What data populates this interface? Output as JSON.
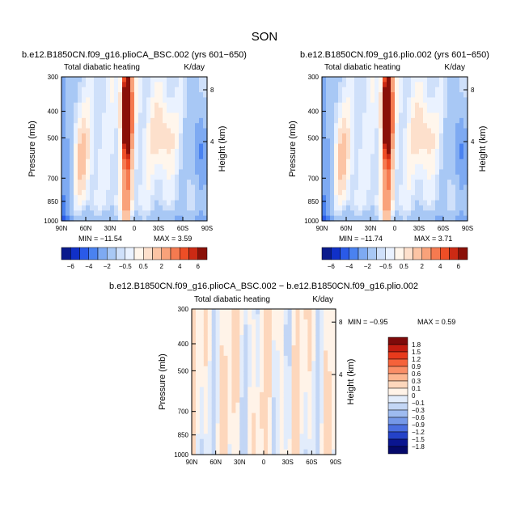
{
  "figure": {
    "title": "SON"
  },
  "chart_data": [
    {
      "type": "heatmap",
      "title": "b.e12.B1850CN.f09_g16.plioCA_BSC.002 (yrs 601−650)",
      "subtitle_left": "Total diabatic heating",
      "subtitle_right": "K/day",
      "ylabel": "Pressure (mb)",
      "ylabel_right": "Height (km)",
      "xticks": [
        "90N",
        "60N",
        "30N",
        "0",
        "30S",
        "60S",
        "90S"
      ],
      "yticks": [
        "300",
        "400",
        "500",
        "700",
        "850",
        "1000"
      ],
      "yticks_right": [
        "8",
        "4"
      ],
      "min_label": "MIN = −11.54",
      "max_label": "MAX =    3.59",
      "colorbar_ticks": [
        "−6",
        "−4",
        "−2",
        "−0.5",
        "0.5",
        "2",
        "4",
        "6"
      ],
      "xlim": [
        90,
        -90
      ],
      "ylim": [
        300,
        1000
      ]
    },
    {
      "type": "heatmap",
      "title": "b.e12.B1850CN.f09_g16.plio.002 (yrs 601−650)",
      "subtitle_left": "Total diabatic heating",
      "subtitle_right": "K/day",
      "ylabel": "Pressure (mb)",
      "ylabel_right": "Height (km)",
      "xticks": [
        "90N",
        "60N",
        "30N",
        "0",
        "30S",
        "60S",
        "90S"
      ],
      "yticks": [
        "300",
        "400",
        "500",
        "700",
        "850",
        "1000"
      ],
      "yticks_right": [
        "8",
        "4"
      ],
      "min_label": "MIN = −11.74",
      "max_label": "MAX =    3.71",
      "colorbar_ticks": [
        "−6",
        "−4",
        "−2",
        "−0.5",
        "0.5",
        "2",
        "4",
        "6"
      ],
      "xlim": [
        90,
        -90
      ],
      "ylim": [
        300,
        1000
      ]
    },
    {
      "type": "heatmap",
      "title": "b.e12.B1850CN.f09_g16.plioCA_BSC.002 − b.e12.B1850CN.f09_g16.plio.002",
      "subtitle_left": "Total diabatic heating",
      "subtitle_right": "K/day",
      "ylabel": "Pressure (mb)",
      "ylabel_right": "Height (km)",
      "xticks": [
        "90N",
        "60N",
        "30N",
        "0",
        "30S",
        "60S",
        "90S"
      ],
      "yticks": [
        "300",
        "400",
        "500",
        "700",
        "850",
        "1000"
      ],
      "yticks_right": [
        "8",
        "4"
      ],
      "min_label": "MIN =   −0.95",
      "max_label": "MAX =    0.59",
      "colorbar_ticks": [
        "1.8",
        "1.5",
        "1.2",
        "0.9",
        "0.6",
        "0.3",
        "0.1",
        "0",
        "−0.1",
        "−0.3",
        "−0.6",
        "−0.9",
        "−1.2",
        "−1.5",
        "−1.8"
      ],
      "xlim": [
        90,
        -90
      ],
      "ylim": [
        300,
        1000
      ]
    }
  ],
  "colors": {
    "main_scale": [
      "#0a1a8c",
      "#1030c8",
      "#2a5ae8",
      "#4a82f0",
      "#7eaaf2",
      "#a8c8f5",
      "#cfe0fa",
      "#eaf2ff",
      "#fff6ec",
      "#fde0cc",
      "#fcc4a4",
      "#f9a27a",
      "#f57a50",
      "#ee4e26",
      "#cc2a14",
      "#8a1008"
    ],
    "diff_scale": [
      "#7e0a0a",
      "#c21c10",
      "#e83a1c",
      "#f5623a",
      "#fa8e66",
      "#fdb690",
      "#fdd7bc",
      "#fff3e8",
      "#e2ecfb",
      "#c3d6f5",
      "#9ebbf0",
      "#7598e8",
      "#4a6ee0",
      "#2442c8",
      "#0a1590",
      "#05096a"
    ]
  }
}
